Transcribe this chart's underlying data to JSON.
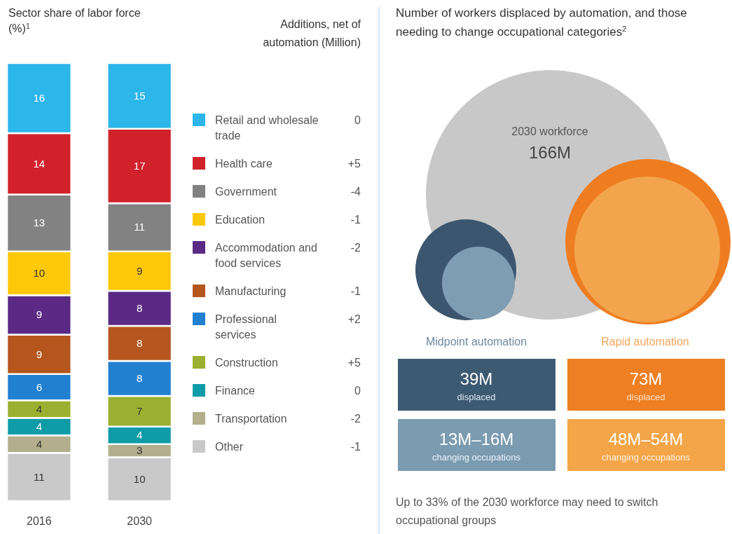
{
  "chart_data": [
    {
      "type": "bar",
      "title": "Sector share of labor force (%)$^{1}$",
      "categories": [
        "2016",
        "2030"
      ],
      "stacked": true,
      "data_labels": true,
      "legend": "right",
      "legend_title": "Additions, net of automation (Million)",
      "series": [
        {
          "name": "Other",
          "color": "#c9c9c9",
          "values": [
            11,
            10
          ]
        },
        {
          "name": "Transportation",
          "color": "#b3ae8c",
          "values": [
            4,
            3
          ]
        },
        {
          "name": "Finance",
          "color": "#0f9ba8",
          "values": [
            4,
            4
          ]
        },
        {
          "name": "Construction",
          "color": "#9bb030",
          "values": [
            4,
            7
          ]
        },
        {
          "name": "Professional services",
          "color": "#2280d0",
          "values": [
            6,
            8
          ]
        },
        {
          "name": "Manufacturing",
          "color": "#b5561f",
          "values": [
            9,
            8
          ]
        },
        {
          "name": "Accommodation and food services",
          "color": "#5a2a85",
          "values": [
            9,
            8
          ]
        },
        {
          "name": "Education",
          "color": "#fdc80a",
          "values": [
            10,
            9
          ]
        },
        {
          "name": "Government",
          "color": "#828282",
          "values": [
            13,
            11
          ]
        },
        {
          "name": "Health care",
          "color": "#d1222b",
          "values": [
            14,
            17
          ]
        },
        {
          "name": "Retail and wholesale trade",
          "color": "#2cb6ea",
          "values": [
            16,
            15
          ]
        }
      ],
      "annotations": [
        "-1",
        "-2",
        "0",
        "+5",
        "+2",
        "-1",
        "-2",
        "-1",
        "-4",
        "+5",
        "0"
      ]
    },
    {
      "type": "other",
      "title": "Number of workers displaced by automation, and those needing to change occupational categories$^{2}$",
      "annotations": [
        "2030 workforce",
        "166M",
        "Midpoint automation",
        "Rapid automation",
        "39M",
        "displaced",
        "73M",
        "displaced",
        "13M–16M",
        "changing occupations",
        "48M–54M",
        "changing occupations",
        "Up to 33% of the 2030 workforce may need to switch occupational groups"
      ]
    }
  ]
}
